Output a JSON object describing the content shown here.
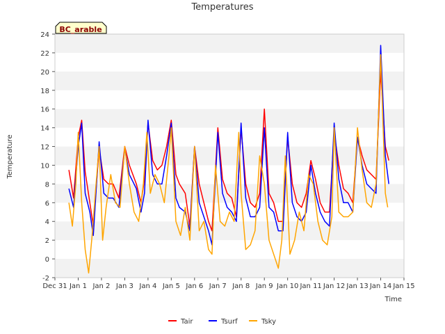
{
  "chart_data": {
    "type": "line",
    "title": "Temperatures",
    "xlabel": "Time",
    "ylabel": "Temperature",
    "site_label": "BC_arable",
    "ylim": [
      -2,
      24
    ],
    "yticks": [
      -2,
      0,
      2,
      4,
      6,
      8,
      10,
      12,
      14,
      16,
      18,
      20,
      22,
      24
    ],
    "xlim": [
      0,
      15
    ],
    "xticks": [
      {
        "x": 0,
        "label": "Dec 31"
      },
      {
        "x": 1,
        "label": "Jan 1"
      },
      {
        "x": 2,
        "label": "Jan 2"
      },
      {
        "x": 3,
        "label": "Jan 3"
      },
      {
        "x": 4,
        "label": "Jan 4"
      },
      {
        "x": 5,
        "label": "Jan 5"
      },
      {
        "x": 6,
        "label": "Jan 6"
      },
      {
        "x": 7,
        "label": "Jan 7"
      },
      {
        "x": 8,
        "label": "Jan 8"
      },
      {
        "x": 9,
        "label": "Jan 9"
      },
      {
        "x": 10,
        "label": "Jan 10"
      },
      {
        "x": 11,
        "label": "Jan 11"
      },
      {
        "x": 12,
        "label": "Jan 12"
      },
      {
        "x": 13,
        "label": "Jan 13"
      },
      {
        "x": 14,
        "label": "Jan 14"
      },
      {
        "x": 15,
        "label": "Jan 15"
      }
    ],
    "grid": "alternating horizontal bands",
    "legend_position": "bottom-center",
    "series": [
      {
        "name": "Tair",
        "color": "#ff0000",
        "x": [
          0.6,
          0.8,
          1.0,
          1.15,
          1.3,
          1.5,
          1.65,
          1.9,
          2.1,
          2.3,
          2.5,
          2.75,
          3.0,
          3.2,
          3.5,
          3.7,
          3.85,
          4.0,
          4.2,
          4.4,
          4.6,
          4.8,
          5.0,
          5.2,
          5.35,
          5.6,
          5.8,
          6.0,
          6.2,
          6.4,
          6.6,
          6.75,
          7.0,
          7.2,
          7.4,
          7.6,
          7.8,
          8.0,
          8.2,
          8.4,
          8.6,
          8.8,
          9.0,
          9.2,
          9.4,
          9.6,
          9.8,
          10.0,
          10.2,
          10.4,
          10.6,
          10.8,
          11.0,
          11.2,
          11.4,
          11.6,
          11.8,
          12.0,
          12.2,
          12.4,
          12.6,
          12.8,
          13.0,
          13.2,
          13.4,
          13.6,
          13.8,
          14.0,
          14.2,
          14.35
        ],
        "values": [
          9.5,
          6.5,
          13.0,
          14.8,
          9.3,
          6.0,
          3.5,
          11.8,
          8.5,
          8.0,
          8.0,
          6.5,
          12.0,
          10.0,
          8.0,
          6.0,
          8.5,
          14.5,
          10.5,
          9.5,
          10.0,
          12.0,
          14.8,
          9.0,
          8.0,
          7.0,
          3.5,
          12.0,
          8.0,
          6.0,
          4.0,
          3.0,
          14.0,
          8.5,
          7.0,
          6.5,
          4.5,
          14.0,
          8.0,
          6.0,
          5.5,
          7.0,
          16.0,
          7.0,
          6.0,
          4.0,
          4.0,
          13.0,
          8.0,
          6.0,
          5.5,
          7.0,
          10.5,
          8.5,
          6.0,
          5.0,
          5.0,
          13.5,
          10.0,
          7.5,
          7.0,
          6.0,
          13.0,
          11.0,
          9.5,
          9.0,
          8.5,
          20.0,
          12.0,
          10.5
        ]
      },
      {
        "name": "Tsurf",
        "color": "#0000ff",
        "x": [
          0.6,
          0.8,
          1.0,
          1.15,
          1.3,
          1.5,
          1.65,
          1.9,
          2.1,
          2.3,
          2.5,
          2.75,
          3.0,
          3.2,
          3.5,
          3.7,
          3.85,
          4.0,
          4.2,
          4.4,
          4.6,
          4.8,
          5.0,
          5.2,
          5.35,
          5.6,
          5.8,
          6.0,
          6.2,
          6.4,
          6.6,
          6.75,
          7.0,
          7.2,
          7.4,
          7.6,
          7.8,
          8.0,
          8.2,
          8.4,
          8.6,
          8.8,
          9.0,
          9.2,
          9.4,
          9.6,
          9.8,
          10.0,
          10.2,
          10.4,
          10.6,
          10.8,
          11.0,
          11.2,
          11.4,
          11.6,
          11.8,
          12.0,
          12.2,
          12.4,
          12.6,
          12.8,
          13.0,
          13.2,
          13.4,
          13.6,
          13.8,
          14.0,
          14.2,
          14.35
        ],
        "values": [
          7.5,
          5.5,
          12.0,
          14.5,
          7.0,
          5.0,
          2.5,
          12.5,
          7.0,
          6.5,
          6.5,
          5.5,
          11.8,
          9.0,
          7.5,
          5.0,
          7.0,
          14.8,
          9.0,
          8.0,
          8.0,
          11.0,
          14.5,
          6.5,
          5.5,
          5.0,
          3.0,
          12.0,
          6.0,
          4.5,
          3.0,
          1.5,
          13.5,
          7.0,
          5.5,
          5.0,
          4.0,
          14.5,
          6.5,
          4.5,
          4.5,
          5.5,
          14.0,
          5.5,
          5.0,
          3.0,
          3.0,
          13.5,
          6.0,
          4.5,
          4.0,
          5.0,
          10.0,
          7.0,
          5.0,
          4.0,
          3.5,
          14.5,
          8.5,
          6.0,
          6.0,
          5.0,
          13.0,
          10.0,
          8.0,
          7.5,
          7.0,
          22.8,
          11.0,
          8.0
        ]
      },
      {
        "name": "Tsky",
        "color": "#ffa500",
        "x": [
          0.6,
          0.75,
          0.9,
          1.0,
          1.15,
          1.3,
          1.45,
          1.6,
          1.75,
          1.9,
          2.05,
          2.2,
          2.4,
          2.6,
          2.8,
          3.0,
          3.2,
          3.4,
          3.6,
          3.8,
          3.95,
          4.1,
          4.3,
          4.5,
          4.7,
          4.9,
          5.0,
          5.2,
          5.4,
          5.6,
          5.8,
          6.0,
          6.2,
          6.4,
          6.6,
          6.75,
          6.9,
          7.1,
          7.3,
          7.5,
          7.7,
          7.9,
          8.0,
          8.2,
          8.4,
          8.6,
          8.8,
          9.0,
          9.2,
          9.4,
          9.6,
          9.75,
          9.9,
          10.1,
          10.3,
          10.5,
          10.7,
          10.9,
          11.1,
          11.3,
          11.5,
          11.7,
          11.9,
          12.0,
          12.2,
          12.4,
          12.6,
          12.8,
          13.0,
          13.2,
          13.4,
          13.6,
          13.8,
          14.0,
          14.2,
          14.3
        ],
        "values": [
          6.0,
          3.5,
          8.0,
          13.5,
          6.0,
          1.0,
          -1.5,
          2.5,
          7.5,
          12.0,
          2.0,
          5.5,
          9.0,
          6.0,
          5.5,
          12.0,
          8.0,
          5.0,
          4.0,
          8.0,
          13.5,
          7.0,
          9.0,
          8.0,
          6.0,
          11.0,
          14.0,
          4.0,
          2.5,
          5.5,
          2.0,
          12.0,
          3.0,
          4.0,
          1.0,
          0.5,
          10.0,
          4.0,
          3.5,
          5.0,
          4.0,
          13.5,
          7.0,
          1.0,
          1.5,
          3.0,
          11.0,
          8.0,
          2.0,
          0.5,
          -1.0,
          2.0,
          11.0,
          0.5,
          2.0,
          5.0,
          3.0,
          9.0,
          8.0,
          4.0,
          2.0,
          1.5,
          4.5,
          14.0,
          5.0,
          4.5,
          4.5,
          5.0,
          14.0,
          9.5,
          6.0,
          5.5,
          8.0,
          21.8,
          7.0,
          5.5
        ]
      }
    ]
  }
}
